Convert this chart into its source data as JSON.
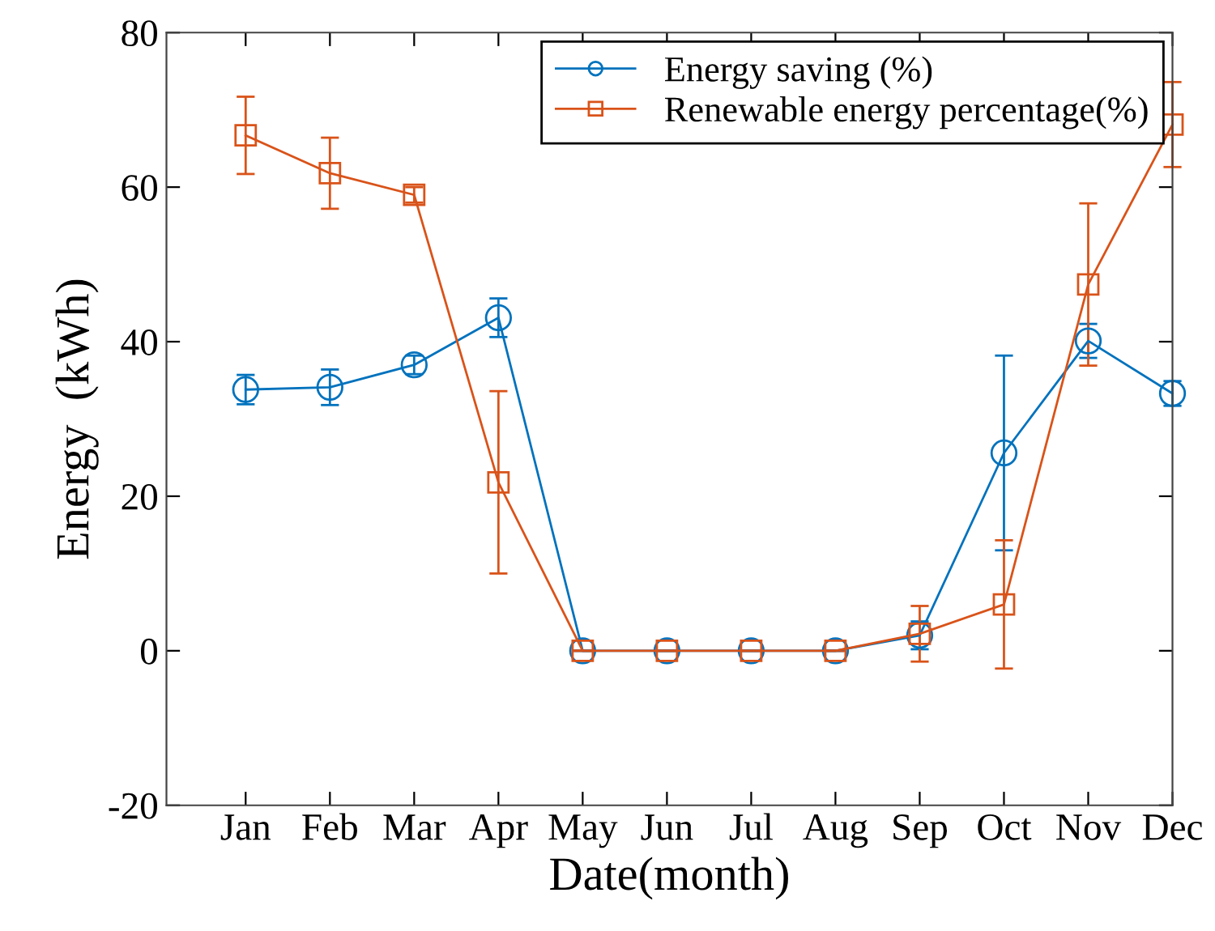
{
  "chart_data": {
    "type": "line",
    "xlabel": "Date(month)",
    "ylabel": "Energy  (kWh)",
    "categories": [
      "Jan",
      "Feb",
      "Mar",
      "Apr",
      "May",
      "Jun",
      "Jul",
      "Aug",
      "Sep",
      "Oct",
      "Nov",
      "Dec"
    ],
    "series": [
      {
        "name": "Energy saving (%)",
        "color": "#0072bd",
        "marker": "circle",
        "values": [
          33.8,
          34.1,
          37.0,
          43.1,
          0,
          0,
          0,
          0,
          2.0,
          25.6,
          40.1,
          33.3
        ],
        "errors": [
          1.9,
          2.3,
          1.2,
          2.5,
          null,
          null,
          null,
          null,
          1.8,
          12.6,
          2.2,
          1.6
        ]
      },
      {
        "name": "Renewable energy percentage(%)",
        "color": "#d95319",
        "marker": "square",
        "values": [
          66.7,
          61.8,
          59.0,
          21.8,
          0,
          0,
          0,
          0,
          2.2,
          6.0,
          47.4,
          68.1
        ],
        "errors": [
          5.0,
          4.6,
          1.0,
          11.8,
          null,
          null,
          null,
          null,
          3.6,
          8.3,
          10.5,
          5.5
        ]
      }
    ],
    "ylim": [
      -20,
      80
    ],
    "yticks": [
      -20,
      0,
      20,
      40,
      60,
      80
    ],
    "grid": false,
    "legend": "top right",
    "line_style": "solid"
  }
}
